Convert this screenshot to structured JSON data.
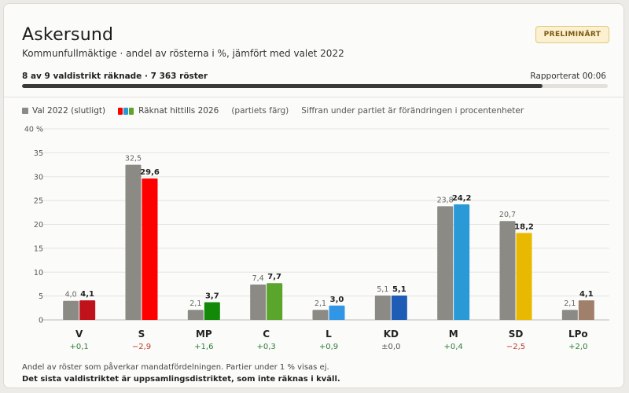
{
  "header": {
    "title": "Askersund",
    "subtitle": "Kommunfullmäktige · andel av rösterna i %, jämfört med valet 2022",
    "badge": "PRELIMINÄRT"
  },
  "progress": {
    "label": "8 av 9 valdistrikt räknade · 7 363 röster",
    "reported": "Rapporterat 00:06",
    "fraction": 0.889
  },
  "legend": {
    "prev_label": "Val 2022 (slutligt)",
    "curr_label": "Räknat hittills 2026",
    "party_color_note": "(partiets färg)",
    "change_note": "Siffran under partiet är förändringen i procentenheter"
  },
  "colors": {
    "prev_bar": "#8b8a84",
    "positive": "#2e7d3a",
    "negative": "#c0392b",
    "neutral": "#555555"
  },
  "chart_data": {
    "type": "bar",
    "categories": [
      "V",
      "S",
      "MP",
      "C",
      "L",
      "KD",
      "M",
      "SD",
      "LPo"
    ],
    "ylim": [
      0,
      40
    ],
    "yticks": [
      0,
      5,
      10,
      15,
      20,
      25,
      30,
      35,
      40
    ],
    "ytick_labels": [
      "0",
      "5",
      "10",
      "15",
      "20",
      "25",
      "30",
      "35",
      "40 %"
    ],
    "series": [
      {
        "name": "Val 2022 (slutligt)",
        "values": [
          4.0,
          32.5,
          2.1,
          7.4,
          2.1,
          5.1,
          23.8,
          20.7,
          2.1
        ],
        "labels": [
          "4,0",
          "32,5",
          "2,1",
          "7,4",
          "2,1",
          "5,1",
          "23,8",
          "20,7",
          "2,1"
        ],
        "color": "#8b8a84"
      },
      {
        "name": "Räknat hittills 2026",
        "values": [
          4.1,
          29.6,
          3.7,
          7.7,
          3.0,
          5.1,
          24.2,
          18.2,
          4.1
        ],
        "labels": [
          "4,1",
          "29,6",
          "3,7",
          "7,7",
          "3,0",
          "5,1",
          "24,2",
          "18,2",
          "4,1"
        ],
        "colors": [
          "#c0121b",
          "#ff0000",
          "#138a07",
          "#5aa52b",
          "#3296e6",
          "#1f5cb5",
          "#2a9ad6",
          "#e9b800",
          "#a0806a"
        ]
      }
    ],
    "changes": [
      "+0,1",
      "−2,9",
      "+1,6",
      "+0,3",
      "+0,9",
      "±0,0",
      "+0,4",
      "−2,5",
      "+2,0"
    ],
    "change_signs": [
      "pos",
      "neg",
      "pos",
      "pos",
      "pos",
      "zero",
      "pos",
      "neg",
      "pos"
    ],
    "grid": true,
    "legend_position": "top-left"
  },
  "footnotes": {
    "line1": "Andel av röster som påverkar mandatfördelningen. Partier under 1 % visas ej.",
    "line2": "Det sista valdistriktet är uppsamlingsdistriktet, som inte räknas i kväll."
  }
}
